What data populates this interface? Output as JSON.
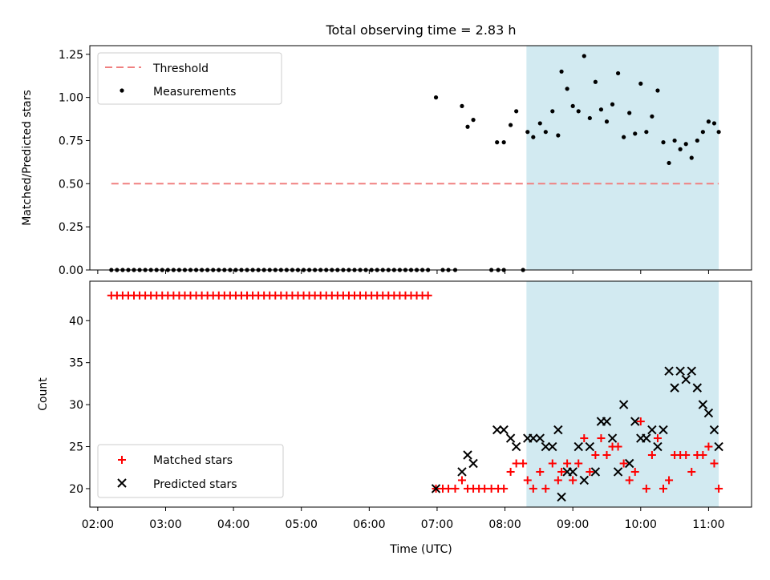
{
  "title": "Total observing time = 2.83 h",
  "x_axis": {
    "label": "Time (UTC)",
    "ticks": [
      "02:00",
      "03:00",
      "04:00",
      "05:00",
      "06:00",
      "07:00",
      "08:00",
      "09:00",
      "10:00",
      "11:00"
    ]
  },
  "shaded_region": {
    "start": "08:19",
    "end": "11:09",
    "color": "#add8e6"
  },
  "chart_data": [
    {
      "type": "scatter",
      "ylabel": "Matched/Predicted stars",
      "ylim": [
        0,
        1.3
      ],
      "yticks": [
        "0.00",
        "0.25",
        "0.50",
        "0.75",
        "1.00",
        "1.25"
      ],
      "threshold": {
        "name": "Threshold",
        "y": 0.5,
        "x_start": "02:12",
        "x_end": "11:09",
        "color": "#f08080"
      },
      "legend": {
        "placement": "top-left",
        "entries": [
          "Threshold",
          "Measurements"
        ]
      },
      "series": [
        {
          "name": "Measurements",
          "color": "#000000",
          "x": [
            "02:12",
            "02:17",
            "02:22",
            "02:27",
            "02:32",
            "02:37",
            "02:42",
            "02:47",
            "02:52",
            "02:57",
            "03:02",
            "03:07",
            "03:12",
            "03:17",
            "03:22",
            "03:27",
            "03:32",
            "03:37",
            "03:42",
            "03:47",
            "03:52",
            "03:57",
            "04:02",
            "04:07",
            "04:12",
            "04:17",
            "04:22",
            "04:27",
            "04:32",
            "04:37",
            "04:42",
            "04:47",
            "04:52",
            "04:57",
            "05:02",
            "05:07",
            "05:12",
            "05:17",
            "05:22",
            "05:27",
            "05:32",
            "05:37",
            "05:42",
            "05:47",
            "05:52",
            "05:57",
            "06:02",
            "06:07",
            "06:12",
            "06:17",
            "06:22",
            "06:27",
            "06:32",
            "06:37",
            "06:42",
            "06:47",
            "06:52",
            "06:59",
            "07:05",
            "07:10",
            "07:16",
            "07:22",
            "07:27",
            "07:32",
            "07:48",
            "07:54",
            "07:59",
            "07:53",
            "07:59",
            "08:05",
            "08:10",
            "08:16",
            "08:20",
            "08:25",
            "08:31",
            "08:36",
            "08:42",
            "08:47",
            "08:50",
            "08:55",
            "09:00",
            "09:05",
            "09:10",
            "09:15",
            "09:20",
            "09:25",
            "09:30",
            "09:35",
            "09:40",
            "09:45",
            "09:50",
            "09:55",
            "10:00",
            "10:05",
            "10:10",
            "10:15",
            "10:20",
            "10:25",
            "10:30",
            "10:35",
            "10:40",
            "10:45",
            "10:50",
            "10:55",
            "11:00",
            "11:05",
            "11:09"
          ],
          "y": [
            0,
            0,
            0,
            0,
            0,
            0,
            0,
            0,
            0,
            0,
            0,
            0,
            0,
            0,
            0,
            0,
            0,
            0,
            0,
            0,
            0,
            0,
            0,
            0,
            0,
            0,
            0,
            0,
            0,
            0,
            0,
            0,
            0,
            0,
            0,
            0,
            0,
            0,
            0,
            0,
            0,
            0,
            0,
            0,
            0,
            0,
            0,
            0,
            0,
            0,
            0,
            0,
            0,
            0,
            0,
            0,
            0,
            1.0,
            0,
            0,
            0,
            0.95,
            0.83,
            0.87,
            0,
            0,
            0,
            0.74,
            0.74,
            0.84,
            0.92,
            0,
            0.8,
            0.77,
            0.85,
            0.8,
            0.92,
            0.78,
            1.15,
            1.05,
            0.95,
            0.92,
            1.24,
            0.88,
            1.09,
            0.93,
            0.86,
            0.96,
            1.14,
            0.77,
            0.91,
            0.79,
            1.08,
            0.8,
            0.89,
            1.04,
            0.74,
            0.62,
            0.75,
            0.7,
            0.73,
            0.65,
            0.75,
            0.8,
            0.86,
            0.85,
            0.8
          ]
        }
      ]
    },
    {
      "type": "scatter",
      "ylabel": "Count",
      "ylim": [
        17.8,
        44.7
      ],
      "yticks": [
        "20",
        "25",
        "30",
        "35",
        "40"
      ],
      "legend": {
        "placement": "bottom-left",
        "entries": [
          "Matched stars",
          "Predicted stars"
        ]
      },
      "series": [
        {
          "name": "Matched stars",
          "color": "#ff0000",
          "x": [
            "02:12",
            "02:17",
            "02:22",
            "02:27",
            "02:32",
            "02:37",
            "02:42",
            "02:47",
            "02:52",
            "02:57",
            "03:02",
            "03:07",
            "03:12",
            "03:17",
            "03:22",
            "03:27",
            "03:32",
            "03:37",
            "03:42",
            "03:47",
            "03:52",
            "03:57",
            "04:02",
            "04:07",
            "04:12",
            "04:17",
            "04:22",
            "04:27",
            "04:32",
            "04:37",
            "04:42",
            "04:47",
            "04:52",
            "04:57",
            "05:02",
            "05:07",
            "05:12",
            "05:17",
            "05:22",
            "05:27",
            "05:32",
            "05:37",
            "05:42",
            "05:47",
            "05:52",
            "05:57",
            "06:02",
            "06:07",
            "06:12",
            "06:17",
            "06:22",
            "06:27",
            "06:32",
            "06:37",
            "06:42",
            "06:47",
            "06:52",
            "06:59",
            "07:05",
            "07:10",
            "07:16",
            "07:22",
            "07:27",
            "07:32",
            "07:37",
            "07:42",
            "07:48",
            "07:54",
            "07:59",
            "08:05",
            "08:10",
            "08:16",
            "08:20",
            "08:25",
            "08:31",
            "08:36",
            "08:42",
            "08:47",
            "08:50",
            "08:55",
            "09:00",
            "09:05",
            "09:10",
            "09:15",
            "09:20",
            "09:25",
            "09:30",
            "09:35",
            "09:40",
            "09:45",
            "09:50",
            "09:55",
            "10:00",
            "10:05",
            "10:10",
            "10:15",
            "10:20",
            "10:25",
            "10:30",
            "10:35",
            "10:40",
            "10:45",
            "10:50",
            "10:55",
            "11:00",
            "11:05",
            "11:09"
          ],
          "y": [
            43,
            43,
            43,
            43,
            43,
            43,
            43,
            43,
            43,
            43,
            43,
            43,
            43,
            43,
            43,
            43,
            43,
            43,
            43,
            43,
            43,
            43,
            43,
            43,
            43,
            43,
            43,
            43,
            43,
            43,
            43,
            43,
            43,
            43,
            43,
            43,
            43,
            43,
            43,
            43,
            43,
            43,
            43,
            43,
            43,
            43,
            43,
            43,
            43,
            43,
            43,
            43,
            43,
            43,
            43,
            43,
            43,
            20,
            20,
            20,
            20,
            21,
            20,
            20,
            20,
            20,
            20,
            20,
            20,
            22,
            23,
            23,
            21,
            20,
            22,
            20,
            23,
            21,
            22,
            23,
            21,
            23,
            26,
            22,
            24,
            26,
            24,
            25,
            25,
            23,
            21,
            22,
            28,
            20,
            24,
            26,
            20,
            21,
            24,
            24,
            24,
            22,
            24,
            24,
            25,
            23,
            20
          ]
        },
        {
          "name": "Predicted stars",
          "color": "#000000",
          "x": [
            "06:59",
            "07:22",
            "07:27",
            "07:32",
            "07:53",
            "07:59",
            "08:05",
            "08:10",
            "08:20",
            "08:25",
            "08:31",
            "08:36",
            "08:42",
            "08:47",
            "08:50",
            "08:55",
            "09:00",
            "09:05",
            "09:10",
            "09:15",
            "09:20",
            "09:25",
            "09:30",
            "09:35",
            "09:40",
            "09:45",
            "09:50",
            "09:55",
            "10:00",
            "10:05",
            "10:10",
            "10:15",
            "10:20",
            "10:25",
            "10:30",
            "10:35",
            "10:40",
            "10:45",
            "10:50",
            "10:55",
            "11:00",
            "11:05",
            "11:09"
          ],
          "y": [
            20,
            22,
            24,
            23,
            27,
            27,
            26,
            25,
            26,
            26,
            26,
            25,
            25,
            27,
            19,
            22,
            22,
            25,
            21,
            25,
            22,
            28,
            28,
            26,
            22,
            30,
            23,
            28,
            26,
            26,
            27,
            25,
            27,
            34,
            32,
            34,
            33,
            34,
            32,
            30,
            29,
            27,
            25
          ]
        }
      ]
    }
  ]
}
